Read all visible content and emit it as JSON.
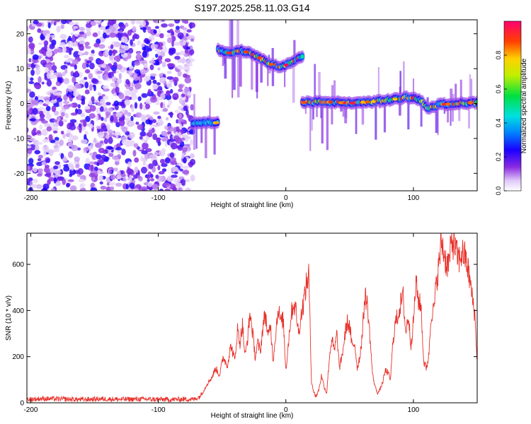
{
  "figure_title": "S197.2025.258.11.03.G14",
  "chart_data": [
    {
      "type": "heatmap",
      "title": "S197.2025.258.11.03.G14",
      "xlabel": "Height of straight line (km)",
      "ylabel": "Frequency (Hz)",
      "xlim": [
        -203,
        150
      ],
      "ylim": [
        -25,
        24
      ],
      "xticks": [
        -200,
        -100,
        0,
        100
      ],
      "yticks": [
        -20,
        -10,
        0,
        10,
        20
      ],
      "tick_labels": {
        "x": [
          "-200",
          "-100",
          "0",
          "100"
        ],
        "y": [
          "-20",
          "-10",
          "0",
          "10",
          "20"
        ]
      },
      "colorbar": {
        "label": "Normalized spectral amplitude",
        "range": [
          0,
          1
        ],
        "ticks": [
          0.0,
          0.2,
          0.4,
          0.6,
          0.8
        ],
        "tick_labels": [
          "0.0",
          "0.2",
          "0.4",
          "0.6",
          "0.8"
        ]
      },
      "segments": [
        {
          "name": "noise",
          "x_range": [
            -203,
            -73
          ],
          "frequency_range": [
            -25,
            24
          ],
          "max_amplitude": 0.25
        },
        {
          "name": "short-track",
          "x_range": [
            -73,
            -53
          ],
          "frequency": -5.5,
          "max_amplitude": 0.45
        },
        {
          "name": "upper-track",
          "x_range": [
            -53,
            13
          ],
          "x": [
            -53,
            -45,
            -35,
            -25,
            -18,
            -12,
            -5,
            0,
            5,
            10,
            13
          ],
          "frequency": [
            15.5,
            14.5,
            15.2,
            14,
            12.5,
            11.3,
            10.5,
            11,
            12,
            13,
            13.2
          ],
          "max_amplitude": 0.95
        },
        {
          "name": "lower-track",
          "x_range": [
            13,
            150
          ],
          "x": [
            13,
            30,
            50,
            70,
            85,
            95,
            105,
            112,
            120,
            135,
            150
          ],
          "frequency": [
            0.3,
            0.5,
            0.1,
            0.6,
            1.2,
            1.8,
            1.2,
            -1.5,
            -0.3,
            0.1,
            0.2
          ],
          "max_amplitude": 0.95
        }
      ]
    },
    {
      "type": "line",
      "xlabel": "Height of straight line (km)",
      "ylabel": "SNR (10 * v/v)",
      "xlim": [
        -203,
        150
      ],
      "ylim": [
        0,
        735
      ],
      "xticks": [
        -200,
        -100,
        0,
        100
      ],
      "yticks": [
        0,
        200,
        400,
        600
      ],
      "tick_labels": {
        "x": [
          "-200",
          "-100",
          "0",
          "100"
        ],
        "y": [
          "0",
          "200",
          "400",
          "600"
        ]
      },
      "series": [
        {
          "name": "SNR",
          "color": "#e8312a",
          "x": [
            -203,
            -190,
            -175,
            -160,
            -145,
            -130,
            -115,
            -100,
            -90,
            -80,
            -72,
            -68,
            -65,
            -62,
            -58,
            -55,
            -52,
            -49,
            -46,
            -43,
            -40,
            -38,
            -36,
            -34,
            -32,
            -30,
            -28,
            -26,
            -24,
            -22,
            -20,
            -18,
            -16,
            -14,
            -12,
            -10,
            -8,
            -6,
            -4,
            -2,
            0,
            2,
            4,
            6,
            8,
            10,
            12,
            14,
            16,
            18,
            20,
            22,
            24,
            26,
            28,
            30,
            32,
            34,
            36,
            38,
            40,
            42,
            44,
            46,
            48,
            50,
            52,
            54,
            56,
            58,
            60,
            62,
            64,
            66,
            68,
            70,
            72,
            74,
            76,
            78,
            80,
            82,
            84,
            86,
            88,
            90,
            92,
            94,
            96,
            98,
            100,
            102,
            104,
            106,
            108,
            110,
            112,
            114,
            116,
            118,
            120,
            122,
            124,
            126,
            128,
            130,
            132,
            134,
            136,
            138,
            140,
            142,
            144,
            146,
            148,
            150
          ],
          "values": [
            15,
            18,
            16,
            14,
            17,
            15,
            16,
            15,
            14,
            16,
            15,
            25,
            45,
            80,
            110,
            150,
            120,
            200,
            160,
            250,
            180,
            320,
            260,
            340,
            200,
            280,
            390,
            300,
            200,
            260,
            220,
            330,
            390,
            280,
            340,
            180,
            300,
            410,
            350,
            360,
            140,
            260,
            380,
            430,
            400,
            300,
            380,
            440,
            510,
            560,
            100,
            40,
            30,
            60,
            120,
            70,
            40,
            190,
            280,
            220,
            300,
            150,
            200,
            280,
            350,
            330,
            240,
            260,
            150,
            200,
            300,
            470,
            420,
            280,
            120,
            70,
            40,
            60,
            90,
            140,
            130,
            100,
            270,
            350,
            380,
            430,
            460,
            300,
            380,
            250,
            350,
            520,
            440,
            420,
            180,
            150,
            200,
            390,
            400,
            520,
            600,
            700,
            650,
            600,
            610,
            700,
            690,
            640,
            620,
            650,
            640,
            600,
            540,
            460,
            390,
            180
          ]
        }
      ]
    }
  ]
}
